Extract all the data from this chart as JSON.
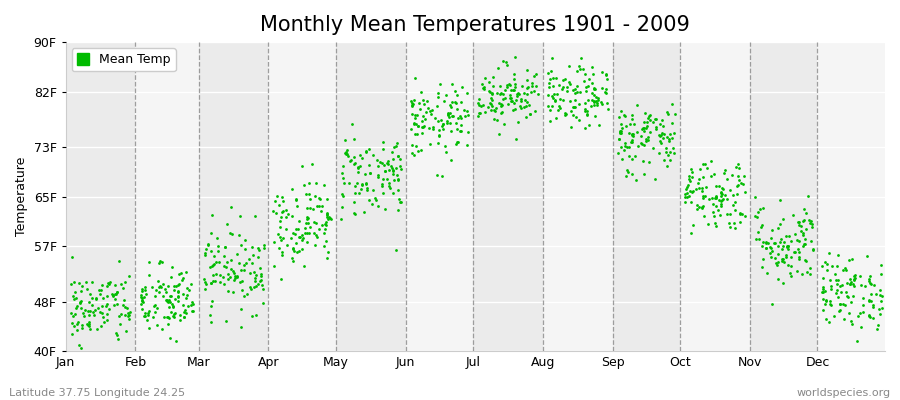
{
  "title": "Monthly Mean Temperatures 1901 - 2009",
  "ylabel": "Temperature",
  "yticks": [
    40,
    48,
    57,
    65,
    73,
    82,
    90
  ],
  "ytick_labels": [
    "40F",
    "48F",
    "57F",
    "65F",
    "73F",
    "82F",
    "90F"
  ],
  "month_labels": [
    "Jan",
    "Feb",
    "Mar",
    "Apr",
    "May",
    "Jun",
    "Jul",
    "Aug",
    "Sep",
    "Oct",
    "Nov",
    "Dec"
  ],
  "month_starts": [
    1,
    32,
    60,
    91,
    121,
    152,
    182,
    213,
    244,
    274,
    305,
    335
  ],
  "month_mids": [
    16,
    46,
    75,
    106,
    136,
    167,
    197,
    228,
    259,
    289,
    320,
    350
  ],
  "month_means": [
    47.0,
    48.0,
    53.5,
    61.0,
    68.5,
    77.0,
    81.5,
    81.0,
    74.5,
    65.5,
    57.5,
    49.5
  ],
  "month_stds": [
    3.0,
    3.0,
    3.5,
    3.5,
    3.5,
    3.0,
    2.5,
    2.5,
    3.0,
    3.0,
    3.5,
    3.0
  ],
  "n_years": 109,
  "point_color": "#00bb00",
  "point_size": 4,
  "background_color": "#ffffff",
  "band_colors": [
    "#ebebeb",
    "#f5f5f5"
  ],
  "legend_label": "Mean Temp",
  "footer_left": "Latitude 37.75 Longitude 24.25",
  "footer_right": "worldspecies.org",
  "ylim": [
    40,
    90
  ],
  "xlim": [
    1,
    365
  ],
  "title_fontsize": 15,
  "axis_fontsize": 9,
  "footer_fontsize": 8
}
